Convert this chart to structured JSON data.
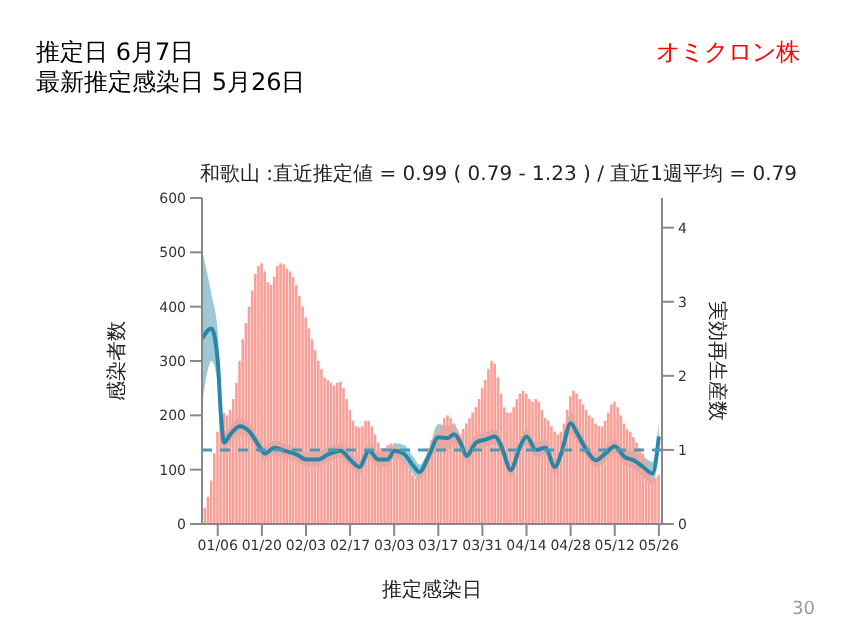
{
  "chart_data": {
    "type": "bar",
    "title": "和歌山 :直近推定値 = 0.99 ( 0.79 - 1.23 ) / 直近1週平均 = 0.79",
    "xlabel": "推定感染日",
    "ylabel": "感染者数",
    "y2label": "実効再生産数",
    "annotations": [
      "推定日  6月7日",
      "最新推定感染日  5月26日",
      "オミクロン株",
      "30"
    ],
    "xlim": [
      "--01-01",
      "--05-27"
    ],
    "xticks": [
      {
        "value": "--01-06",
        "label": "01/06"
      },
      {
        "value": "--01-20",
        "label": "01/20"
      },
      {
        "value": "--02-03",
        "label": "02/03"
      },
      {
        "value": "--02-17",
        "label": "02/17"
      },
      {
        "value": "--03-03",
        "label": "03/03"
      },
      {
        "value": "--03-17",
        "label": "03/17"
      },
      {
        "value": "--03-31",
        "label": "03/31"
      },
      {
        "value": "--04-14",
        "label": "04/14"
      },
      {
        "value": "--04-28",
        "label": "04/28"
      },
      {
        "value": "--05-12",
        "label": "05/12"
      },
      {
        "value": "--05-26",
        "label": "05/26"
      }
    ],
    "ylim": [
      0,
      600
    ],
    "yticks": [
      0,
      100,
      200,
      300,
      400,
      500,
      600
    ],
    "y2lim": [
      0,
      4.4
    ],
    "y2ticks": [
      0,
      1,
      2,
      3,
      4
    ],
    "ref_lines": [
      {
        "axis": "y2",
        "value": 1,
        "color": "#4a9ab5",
        "line_style": "dashed"
      }
    ],
    "series": [
      {
        "color": "#f8a098",
        "x": [
          "--01-02",
          "--01-03",
          "--01-04",
          "--01-05",
          "--01-06",
          "--01-07",
          "--01-08",
          "--01-09",
          "--01-10",
          "--01-11",
          "--01-12",
          "--01-13",
          "--01-14",
          "--01-15",
          "--01-16",
          "--01-17",
          "--01-18",
          "--01-19",
          "--01-20",
          "--01-21",
          "--01-22",
          "--01-23",
          "--01-24",
          "--01-25",
          "--01-26",
          "--01-27",
          "--01-28",
          "--01-29",
          "--01-30",
          "--01-31",
          "--02-01",
          "--02-02",
          "--02-03",
          "--02-04",
          "--02-05",
          "--02-06",
          "--02-07",
          "--02-08",
          "--02-09",
          "--02-10",
          "--02-11",
          "--02-12",
          "--02-13",
          "--02-14",
          "--02-15",
          "--02-16",
          "--02-17",
          "--02-18",
          "--02-19",
          "--02-20",
          "--02-21",
          "--02-22",
          "--02-23",
          "--02-24",
          "--02-25",
          "--02-26",
          "--02-27",
          "--02-28",
          "--03-01",
          "--03-02",
          "--03-03",
          "--03-04",
          "--03-05",
          "--03-06",
          "--03-07",
          "--03-08",
          "--03-09",
          "--03-10",
          "--03-11",
          "--03-12",
          "--03-13",
          "--03-14",
          "--03-15",
          "--03-16",
          "--03-17",
          "--03-18",
          "--03-19",
          "--03-20",
          "--03-21",
          "--03-22",
          "--03-23",
          "--03-24",
          "--03-25",
          "--03-26",
          "--03-27",
          "--03-28",
          "--03-29",
          "--03-30",
          "--03-31",
          "--04-01",
          "--04-02",
          "--04-03",
          "--04-04",
          "--04-05",
          "--04-06",
          "--04-07",
          "--04-08",
          "--04-09",
          "--04-10",
          "--04-11",
          "--04-12",
          "--04-13",
          "--04-14",
          "--04-15",
          "--04-16",
          "--04-17",
          "--04-18",
          "--04-19",
          "--04-20",
          "--04-21",
          "--04-22",
          "--04-23",
          "--04-24",
          "--04-25",
          "--04-26",
          "--04-27",
          "--04-28",
          "--04-29",
          "--04-30",
          "--05-01",
          "--05-02",
          "--05-03",
          "--05-04",
          "--05-05",
          "--05-06",
          "--05-07",
          "--05-08",
          "--05-09",
          "--05-10",
          "--05-11",
          "--05-12",
          "--05-13",
          "--05-14",
          "--05-15",
          "--05-16",
          "--05-17",
          "--05-18",
          "--05-19",
          "--05-20",
          "--05-21",
          "--05-22",
          "--05-23",
          "--05-24",
          "--05-25",
          "--05-26"
        ],
        "values": [
          30,
          50,
          80,
          130,
          170,
          200,
          205,
          200,
          210,
          230,
          260,
          300,
          340,
          370,
          400,
          430,
          460,
          475,
          480,
          465,
          445,
          440,
          455,
          475,
          480,
          478,
          470,
          465,
          455,
          440,
          420,
          400,
          380,
          360,
          340,
          320,
          300,
          285,
          270,
          265,
          260,
          255,
          260,
          262,
          250,
          230,
          210,
          190,
          180,
          178,
          180,
          190,
          190,
          180,
          165,
          150,
          140,
          140,
          145,
          148,
          145,
          140,
          130,
          120,
          110,
          100,
          90,
          85,
          95,
          105,
          120,
          140,
          155,
          165,
          170,
          180,
          195,
          200,
          195,
          185,
          170,
          165,
          175,
          185,
          195,
          205,
          215,
          230,
          250,
          265,
          285,
          300,
          295,
          270,
          240,
          215,
          205,
          205,
          215,
          230,
          240,
          245,
          240,
          230,
          225,
          230,
          225,
          210,
          195,
          190,
          180,
          170,
          165,
          170,
          185,
          210,
          235,
          245,
          240,
          230,
          220,
          210,
          200,
          195,
          185,
          180,
          180,
          190,
          205,
          220,
          225,
          215,
          200,
          185,
          175,
          170,
          160,
          150,
          140,
          130,
          115,
          100,
          85,
          85,
          90
        ]
      },
      {
        "type": "line",
        "axis": "y2",
        "color": "#2a86a6",
        "x": [
          "--01-01",
          "--01-04",
          "--01-06",
          "--01-07",
          "--01-08",
          "--01-10",
          "--01-13",
          "--01-16",
          "--01-19",
          "--01-21",
          "--01-24",
          "--01-27",
          "--01-31",
          "--02-03",
          "--02-07",
          "--02-10",
          "--02-14",
          "--02-17",
          "--02-20",
          "--02-23",
          "--02-26",
          "--03-01",
          "--03-03",
          "--03-06",
          "--03-09",
          "--03-11",
          "--03-14",
          "--03-17",
          "--03-20",
          "--03-22",
          "--03-24",
          "--03-26",
          "--03-29",
          "--04-01",
          "--04-04",
          "--04-06",
          "--04-09",
          "--04-12",
          "--04-14",
          "--04-17",
          "--04-20",
          "--04-23",
          "--04-25",
          "--04-28",
          "--04-30",
          "--05-03",
          "--05-06",
          "--05-09",
          "--05-12",
          "--05-15",
          "--05-18",
          "--05-21",
          "--05-24",
          "--05-26"
        ],
        "values": [
          2.5,
          2.64,
          2.2,
          1.47,
          1.1,
          1.21,
          1.32,
          1.25,
          1.06,
          0.95,
          1.03,
          0.99,
          0.94,
          0.87,
          0.87,
          0.94,
          0.99,
          0.87,
          0.77,
          0.99,
          0.87,
          0.87,
          0.99,
          0.95,
          0.79,
          0.7,
          0.92,
          1.17,
          1.16,
          1.21,
          1.1,
          0.92,
          1.1,
          1.14,
          1.18,
          1.05,
          0.73,
          1.05,
          1.18,
          1.0,
          1.03,
          0.77,
          0.95,
          1.36,
          1.23,
          1.0,
          0.86,
          0.95,
          1.05,
          0.91,
          0.86,
          0.77,
          0.68,
          1.18
        ],
        "lower": [
          1.6,
          2.2,
          1.9,
          1.3,
          0.98,
          1.1,
          1.2,
          1.14,
          0.96,
          0.85,
          0.93,
          0.89,
          0.84,
          0.77,
          0.77,
          0.84,
          0.89,
          0.77,
          0.67,
          0.89,
          0.77,
          0.77,
          0.89,
          0.83,
          0.67,
          0.6,
          0.82,
          1.02,
          1.0,
          1.08,
          1.0,
          0.82,
          1.0,
          1.04,
          1.08,
          0.95,
          0.63,
          0.95,
          1.08,
          0.9,
          0.93,
          0.67,
          0.85,
          1.22,
          1.12,
          0.9,
          0.76,
          0.85,
          0.95,
          0.81,
          0.74,
          0.63,
          0.52,
          0.99
        ],
        "upper": [
          3.7,
          3.1,
          2.6,
          1.65,
          1.25,
          1.32,
          1.44,
          1.36,
          1.16,
          1.05,
          1.13,
          1.09,
          1.04,
          0.97,
          0.97,
          1.04,
          1.09,
          0.97,
          0.87,
          1.09,
          0.97,
          0.97,
          1.09,
          1.07,
          0.91,
          0.8,
          1.02,
          1.35,
          1.32,
          1.34,
          1.2,
          1.02,
          1.2,
          1.24,
          1.28,
          1.15,
          0.83,
          1.15,
          1.28,
          1.1,
          1.13,
          0.87,
          1.05,
          1.5,
          1.34,
          1.1,
          0.96,
          1.05,
          1.15,
          1.01,
          0.98,
          0.91,
          0.84,
          1.38
        ]
      }
    ]
  }
}
